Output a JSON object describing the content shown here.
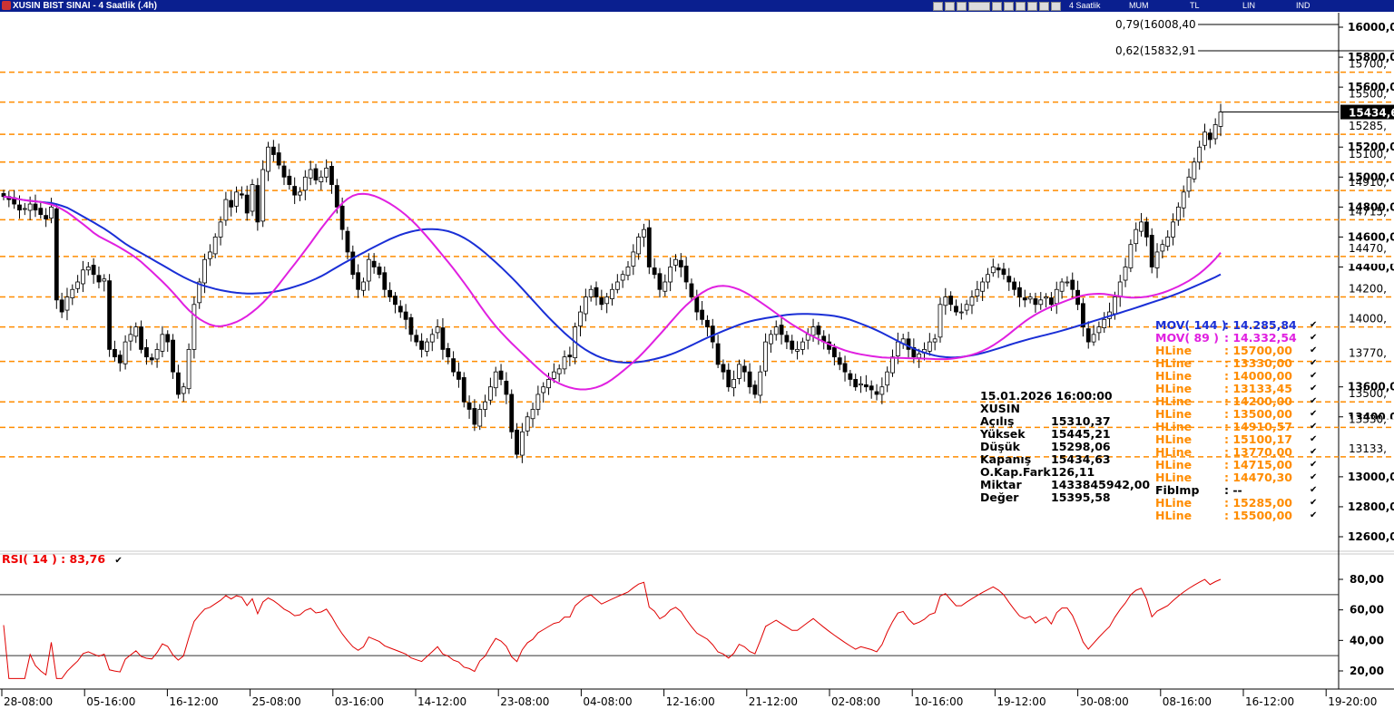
{
  "window": {
    "title": "XUSIN BIST SINAI - 4 Saatlik (.4h)",
    "toolbar_labels": [
      "4 Saatlik",
      "MUM",
      "TL",
      "LIN",
      "IND"
    ]
  },
  "info_panel": {
    "datetime": "15.01.2026  16:00:00",
    "symbol": "XUSIN",
    "rows": [
      {
        "k": "Açılış",
        "v": "15310,37"
      },
      {
        "k": "Yüksek",
        "v": "15445,21"
      },
      {
        "k": "Düşük",
        "v": "15298,06"
      },
      {
        "k": "Kapanış",
        "v": "15434,63"
      },
      {
        "k": "O.Kap.Fark",
        "v": "126,11"
      },
      {
        "k": "Miktar",
        "v": "1433845942,00"
      },
      {
        "k": "Değer",
        "v": "15395,58"
      }
    ]
  },
  "legend": [
    {
      "name": "MOV( 144 )",
      "value": ": 14.285,84",
      "color": "#1a2fd6"
    },
    {
      "name": "MOV( 89 )",
      "value": ": 14.332,54",
      "color": "#e020e0"
    },
    {
      "name": "HLine",
      "value": ": 15700,00",
      "color": "#ff8c00"
    },
    {
      "name": "HLine",
      "value": ": 13330,00",
      "color": "#ff8c00"
    },
    {
      "name": "HLine",
      "value": ": 14000,00",
      "color": "#ff8c00"
    },
    {
      "name": "HLine",
      "value": ": 13133,45",
      "color": "#ff8c00"
    },
    {
      "name": "HLine",
      "value": ": 14200,00",
      "color": "#ff8c00"
    },
    {
      "name": "HLine",
      "value": ": 13500,00",
      "color": "#ff8c00"
    },
    {
      "name": "HLine",
      "value": ": 14910,57",
      "color": "#ff8c00"
    },
    {
      "name": "HLine",
      "value": ": 15100,17",
      "color": "#ff8c00"
    },
    {
      "name": "HLine",
      "value": ": 13770,00",
      "color": "#ff8c00"
    },
    {
      "name": "HLine",
      "value": ": 14715,00",
      "color": "#ff8c00"
    },
    {
      "name": "HLine",
      "value": ": 14470,30",
      "color": "#ff8c00"
    },
    {
      "name": "FibImp",
      "value": ": --",
      "color": "#000000"
    },
    {
      "name": "HLine",
      "value": ": 15285,00",
      "color": "#ff8c00"
    },
    {
      "name": "HLine",
      "value": ": 15500,00",
      "color": "#ff8c00"
    }
  ],
  "rsi_title": "RSI( 14 )   : 83,76",
  "fib_labels": [
    "0,79(16008,40",
    "0,62(15832,91"
  ],
  "chart_data": [
    {
      "type": "candlestick",
      "y_ticks": [
        "16000,0",
        "15800,0",
        "15600,0",
        "15200,0",
        "15000,0",
        "14800,0",
        "14600,0",
        "14400,0",
        "13600,0",
        "13400,0",
        "13000,0",
        "12800,0",
        "12600,0"
      ],
      "ylim": [
        12500,
        16100
      ],
      "x_ticks": [
        "28-08:00",
        "05-16:00",
        "16-12:00",
        "25-08:00",
        "03-16:00",
        "14-12:00",
        "23-08:00",
        "04-08:00",
        "12-16:00",
        "21-12:00",
        "02-08:00",
        "10-16:00",
        "19-12:00",
        "30-08:00",
        "08-16:00",
        "16-12:00",
        "19-20:00"
      ],
      "hlines": [
        15700,
        15500,
        15285,
        15100,
        14910,
        14715,
        14470,
        14200,
        14000,
        13770,
        13500,
        13330,
        13133
      ],
      "hline_labels": [
        "15700,",
        "15500,",
        "15285,",
        "15100,",
        "14910,",
        "14715,",
        "14470,",
        "14200,",
        "14000,",
        "13770,",
        "13500,",
        "13330,",
        "13133,"
      ],
      "last_price_label": "15434,6",
      "close": [
        14870,
        14850,
        14820,
        14780,
        14790,
        14820,
        14780,
        14750,
        14720,
        14800,
        14180,
        14100,
        14200,
        14250,
        14300,
        14380,
        14400,
        14350,
        14300,
        14320,
        13850,
        13800,
        13760,
        13900,
        13950,
        14000,
        13850,
        13800,
        13780,
        13850,
        13950,
        13900,
        13700,
        13550,
        13600,
        13850,
        14150,
        14300,
        14450,
        14500,
        14600,
        14700,
        14850,
        14800,
        14900,
        14880,
        14760,
        14950,
        14700,
        15050,
        15200,
        15150,
        15080,
        15000,
        14950,
        14880,
        14900,
        15000,
        15050,
        14980,
        15000,
        15060,
        14950,
        14800,
        14650,
        14500,
        14350,
        14250,
        14300,
        14450,
        14400,
        14350,
        14250,
        14200,
        14150,
        14100,
        14050,
        13950,
        13900,
        13850,
        13900,
        13950,
        14000,
        13850,
        13800,
        13700,
        13650,
        13500,
        13450,
        13350,
        13450,
        13500,
        13600,
        13700,
        13650,
        13550,
        13300,
        13150,
        13300,
        13400,
        13450,
        13550,
        13600,
        13650,
        13700,
        13720,
        13800,
        13800,
        14000,
        14100,
        14200,
        14250,
        14200,
        14150,
        14200,
        14250,
        14300,
        14350,
        14400,
        14500,
        14600,
        14650,
        14400,
        14350,
        14250,
        14300,
        14400,
        14450,
        14400,
        14300,
        14200,
        14100,
        14050,
        14000,
        13900,
        13750,
        13700,
        13600,
        13650,
        13750,
        13700,
        13600,
        13550,
        13700,
        13900,
        13950,
        14000,
        13950,
        13900,
        13850,
        13850,
        13900,
        13950,
        14000,
        13950,
        13900,
        13850,
        13800,
        13750,
        13700,
        13650,
        13600,
        13620,
        13600,
        13580,
        13550,
        13600,
        13700,
        13800,
        13900,
        13920,
        13850,
        13800,
        13820,
        13850,
        13900,
        13920,
        14150,
        14200,
        14150,
        14100,
        14100,
        14150,
        14200,
        14250,
        14300,
        14350,
        14400,
        14380,
        14350,
        14300,
        14250,
        14200,
        14180,
        14200,
        14150,
        14180,
        14200,
        14150,
        14250,
        14300,
        14300,
        14250,
        14150,
        14000,
        13900,
        13950,
        14000,
        14050,
        14100,
        14200,
        14300,
        14400,
        14550,
        14650,
        14700,
        14600,
        14400,
        14500,
        14550,
        14600,
        14700,
        14800,
        14900,
        15000,
        15100,
        15200,
        15300,
        15250,
        15350,
        15434
      ]
    },
    {
      "type": "line",
      "name": "RSI( 14 )",
      "ylim": [
        10,
        95
      ],
      "y_ticks": [
        "80,00",
        "60,00",
        "40,00",
        "20,00"
      ],
      "levels": [
        70,
        30
      ]
    }
  ],
  "colors": {
    "hline": "#ff8c00",
    "mov144": "#1a2fd6",
    "mov89": "#e020e0",
    "rsi": "#e00000",
    "title_bg": "#0a1f8f"
  }
}
